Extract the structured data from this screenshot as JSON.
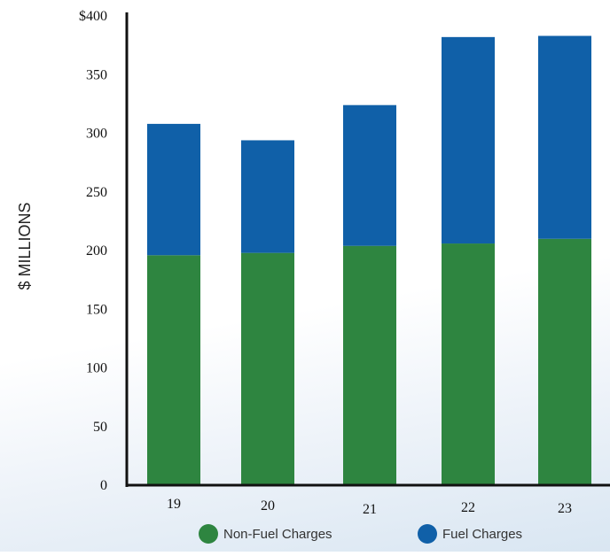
{
  "colors": {
    "non_fuel": "#2e8540",
    "fuel": "#1060a8",
    "axis": "#111111"
  },
  "chart_data": {
    "type": "bar",
    "stacked": true,
    "categories": [
      "19",
      "20",
      "21",
      "22",
      "23"
    ],
    "series": [
      {
        "name": "Non-Fuel Charges",
        "color": "#2e8540",
        "values": [
          196,
          198,
          204,
          206,
          210
        ]
      },
      {
        "name": "Fuel Charges",
        "color": "#1060a8",
        "values": [
          112,
          96,
          120,
          176,
          173
        ]
      }
    ],
    "ylabel": "$ MILLIONS",
    "xlabel": "",
    "ylim": [
      0,
      400
    ],
    "yticks": [
      0,
      50,
      100,
      150,
      200,
      250,
      300,
      350,
      400
    ],
    "ytick_labels": [
      "0",
      "50",
      "100",
      "150",
      "200",
      "250",
      "300",
      "350",
      "$400"
    ],
    "grid": false,
    "legend_position": "bottom"
  }
}
